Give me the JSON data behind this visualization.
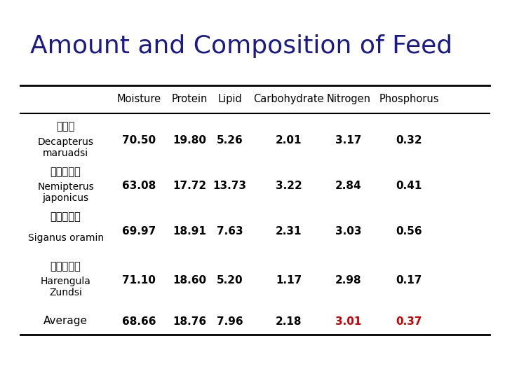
{
  "title": "Amount and Composition of Feed",
  "title_color": "#1a1a8c",
  "title_fontsize": 26,
  "title_fontweight": "normal",
  "columns": [
    "Moisture",
    "Protein",
    "Lipid",
    "Carbohydrate",
    "Nitrogen",
    "Phosphorus"
  ],
  "rows": [
    {
      "label_zh": "蓝圆鰹",
      "label_en": "Decapterus\nmaruadsi",
      "values": [
        "70.50",
        "19.80",
        "5.26",
        "2.01",
        "3.17",
        "0.32"
      ],
      "value_colors": [
        "#000000",
        "#000000",
        "#000000",
        "#000000",
        "#000000",
        "#000000"
      ]
    },
    {
      "label_zh": "日本金线鱼",
      "label_en": "Nemipterus\njaponicus",
      "values": [
        "63.08",
        "17.72",
        "13.73",
        "3.22",
        "2.84",
        "0.41"
      ],
      "value_colors": [
        "#000000",
        "#000000",
        "#000000",
        "#000000",
        "#000000",
        "#000000"
      ]
    },
    {
      "label_zh": "黄诛篮子鱼",
      "label_en": "Siganus oramin",
      "values": [
        "69.97",
        "18.91",
        "7.63",
        "2.31",
        "3.03",
        "0.56"
      ],
      "value_colors": [
        "#000000",
        "#000000",
        "#000000",
        "#000000",
        "#000000",
        "#000000"
      ]
    },
    {
      "label_zh": "中华青鳞鱼",
      "label_en": "Harengula\nZundsi",
      "values": [
        "71.10",
        "18.60",
        "5.20",
        "1.17",
        "2.98",
        "0.17"
      ],
      "value_colors": [
        "#000000",
        "#000000",
        "#000000",
        "#000000",
        "#000000",
        "#000000"
      ]
    },
    {
      "label_zh": "Average",
      "label_en": "",
      "values": [
        "68.66",
        "18.76",
        "7.96",
        "2.18",
        "3.01",
        "0.37"
      ],
      "value_colors": [
        "#000000",
        "#000000",
        "#000000",
        "#000000",
        "#cc0000",
        "#cc0000"
      ]
    }
  ],
  "bg_color": "#ffffff",
  "header_fontsize": 10.5,
  "cell_fontsize": 11,
  "label_fontsize": 10,
  "zh_fontsize": 10.5
}
